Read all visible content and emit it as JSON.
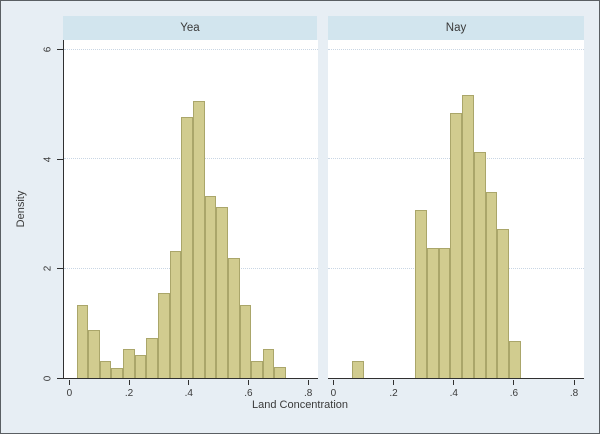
{
  "figure": {
    "ylabel": "Density",
    "xlabel": "Land Concentration",
    "colors": {
      "background": "#e7eef4",
      "panel_header": "#d2e5ee",
      "plot_background": "#ffffff",
      "bar_fill": "#d1cc8f",
      "bar_edge": "#aaa66a",
      "gridline": "#c9d6e4",
      "axis_line": "#303030",
      "text": "#3a3a3a"
    }
  },
  "chart_data": [
    {
      "type": "bar",
      "subtype": "histogram",
      "title": "Yea",
      "xlabel": "Land Concentration",
      "ylabel": "Density",
      "xlim": [
        -0.018,
        0.833
      ],
      "ylim": [
        0,
        6.18
      ],
      "bin_width": 0.039,
      "grid_y": [
        2,
        4,
        6
      ],
      "xticks": [
        {
          "value": 0.0,
          "label": "0"
        },
        {
          "value": 0.2,
          "label": ".2"
        },
        {
          "value": 0.4,
          "label": ".4"
        },
        {
          "value": 0.6,
          "label": ".6"
        },
        {
          "value": 0.8,
          "label": ".8"
        }
      ],
      "yticks": [
        {
          "value": 0,
          "label": "0"
        },
        {
          "value": 2,
          "label": "2"
        },
        {
          "value": 4,
          "label": "4"
        },
        {
          "value": 6,
          "label": "6"
        }
      ],
      "bars": [
        {
          "x": 0.024,
          "h": 1.33
        },
        {
          "x": 0.063,
          "h": 0.87
        },
        {
          "x": 0.102,
          "h": 0.31
        },
        {
          "x": 0.141,
          "h": 0.19
        },
        {
          "x": 0.18,
          "h": 0.53
        },
        {
          "x": 0.219,
          "h": 0.42
        },
        {
          "x": 0.258,
          "h": 0.73
        },
        {
          "x": 0.297,
          "h": 1.55
        },
        {
          "x": 0.336,
          "h": 2.32
        },
        {
          "x": 0.375,
          "h": 4.78
        },
        {
          "x": 0.414,
          "h": 5.07
        },
        {
          "x": 0.453,
          "h": 3.32
        },
        {
          "x": 0.492,
          "h": 3.13
        },
        {
          "x": 0.531,
          "h": 2.2
        },
        {
          "x": 0.57,
          "h": 1.33
        },
        {
          "x": 0.609,
          "h": 0.31
        },
        {
          "x": 0.648,
          "h": 0.53
        },
        {
          "x": 0.687,
          "h": 0.2
        }
      ]
    },
    {
      "type": "bar",
      "subtype": "histogram",
      "title": "Nay",
      "xlabel": "Land Concentration",
      "ylabel": "Density",
      "xlim": [
        -0.018,
        0.833
      ],
      "ylim": [
        0,
        6.18
      ],
      "bin_width": 0.039,
      "grid_y": [
        2,
        4,
        6
      ],
      "xticks": [
        {
          "value": 0.0,
          "label": "0"
        },
        {
          "value": 0.2,
          "label": ".2"
        },
        {
          "value": 0.4,
          "label": ".4"
        },
        {
          "value": 0.6,
          "label": ".6"
        },
        {
          "value": 0.8,
          "label": ".8"
        }
      ],
      "yticks": [
        {
          "value": 0,
          "label": "0"
        },
        {
          "value": 2,
          "label": "2"
        },
        {
          "value": 4,
          "label": "4"
        },
        {
          "value": 6,
          "label": "6"
        }
      ],
      "bars": [
        {
          "x": 0.063,
          "h": 0.31
        },
        {
          "x": 0.272,
          "h": 3.08
        },
        {
          "x": 0.311,
          "h": 2.37
        },
        {
          "x": 0.35,
          "h": 2.37
        },
        {
          "x": 0.389,
          "h": 4.84
        },
        {
          "x": 0.428,
          "h": 5.18
        },
        {
          "x": 0.467,
          "h": 4.14
        },
        {
          "x": 0.506,
          "h": 3.41
        },
        {
          "x": 0.545,
          "h": 2.73
        },
        {
          "x": 0.584,
          "h": 0.67
        }
      ]
    }
  ]
}
